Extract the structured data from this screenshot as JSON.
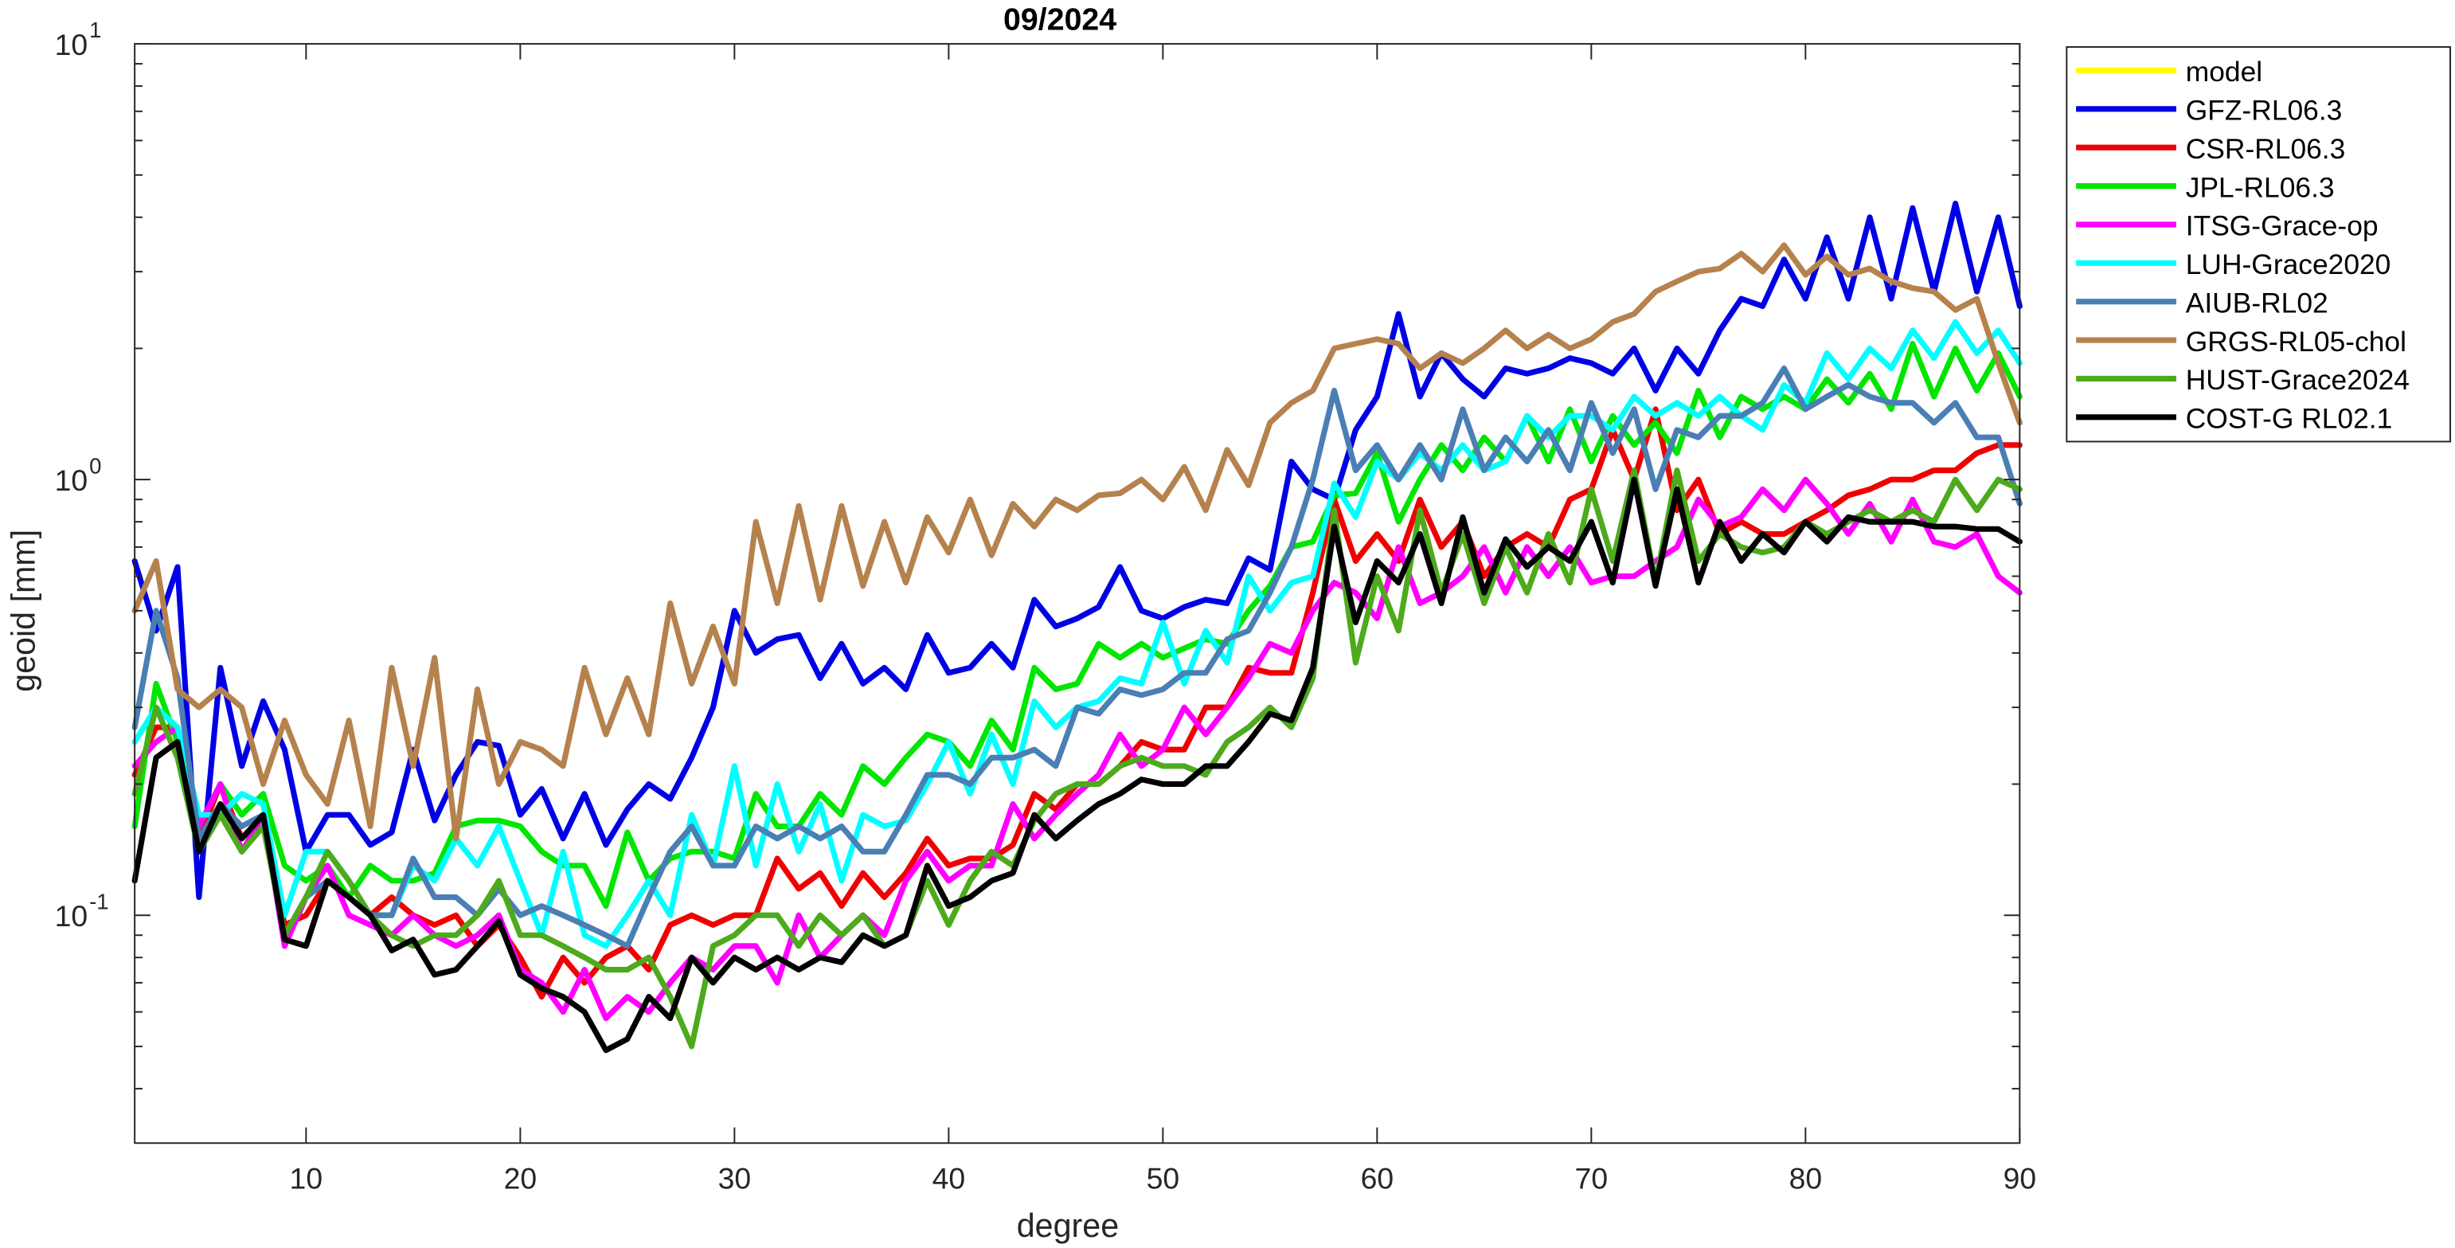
{
  "chart_data": {
    "type": "line",
    "title": "09/2024",
    "xlabel": "degree",
    "ylabel": "geoid [mm]",
    "log_y": true,
    "legend": "outside-right-top",
    "xlim": [
      2,
      90
    ],
    "xticks": [
      10,
      20,
      30,
      40,
      50,
      60,
      70,
      80,
      90
    ],
    "ylim": [
      0.03,
      10
    ],
    "yticks": [
      {
        "value": 0.1,
        "label": "10",
        "exponent": "-1"
      },
      {
        "value": 1,
        "label": "10",
        "exponent": "0"
      },
      {
        "value": 10,
        "label": "10",
        "exponent": "1"
      }
    ],
    "yminorticks": [
      0.04,
      0.05,
      0.06,
      0.07,
      0.08,
      0.09,
      0.2,
      0.3,
      0.4,
      0.5,
      0.6,
      0.7,
      0.8,
      0.9,
      2,
      3,
      4,
      5,
      6,
      7,
      8,
      9
    ],
    "x": [
      2,
      3,
      4,
      5,
      6,
      7,
      8,
      9,
      10,
      11,
      12,
      13,
      14,
      15,
      16,
      17,
      18,
      19,
      20,
      21,
      22,
      23,
      24,
      25,
      26,
      27,
      28,
      29,
      30,
      31,
      32,
      33,
      34,
      35,
      36,
      37,
      38,
      39,
      40,
      41,
      42,
      43,
      44,
      45,
      46,
      47,
      48,
      49,
      50,
      51,
      52,
      53,
      54,
      55,
      56,
      57,
      58,
      59,
      60,
      61,
      62,
      63,
      64,
      65,
      66,
      67,
      68,
      69,
      70,
      71,
      72,
      73,
      74,
      75,
      76,
      77,
      78,
      79,
      80,
      81,
      82,
      83,
      84,
      85,
      86,
      87,
      88,
      89,
      90
    ],
    "series": [
      {
        "name": "model",
        "color": "#ffff00",
        "values": [
          null,
          null,
          null,
          null,
          null,
          null,
          null,
          null,
          null,
          null,
          null,
          null,
          null,
          null,
          null,
          null,
          null,
          null,
          null,
          null,
          null,
          null,
          null,
          null,
          null,
          null,
          null,
          null,
          null,
          null,
          null,
          null,
          null,
          null,
          null,
          null,
          null,
          null,
          null,
          null,
          null,
          null,
          null,
          null,
          null,
          null,
          null,
          null,
          null,
          null,
          null,
          null,
          null,
          null,
          null,
          null,
          null,
          null,
          null,
          null,
          null,
          null,
          null,
          null,
          null,
          null,
          null,
          null,
          null,
          null,
          null,
          null,
          null,
          null,
          null,
          null,
          null,
          null,
          null,
          null,
          null,
          null,
          null,
          null,
          null,
          null,
          null,
          null,
          null
        ]
      },
      {
        "name": "GFZ-RL06.3",
        "color": "#0000e6",
        "values": [
          0.65,
          0.45,
          0.63,
          0.11,
          0.37,
          0.22,
          0.31,
          0.24,
          0.14,
          0.17,
          0.17,
          0.145,
          0.155,
          0.24,
          0.165,
          0.21,
          0.25,
          0.245,
          0.17,
          0.195,
          0.15,
          0.19,
          0.145,
          0.175,
          0.2,
          0.185,
          0.23,
          0.3,
          0.5,
          0.4,
          0.43,
          0.44,
          0.35,
          0.42,
          0.34,
          0.37,
          0.33,
          0.44,
          0.36,
          0.37,
          0.42,
          0.37,
          0.53,
          0.46,
          0.48,
          0.51,
          0.63,
          0.5,
          0.48,
          0.51,
          0.53,
          0.52,
          0.66,
          0.62,
          1.1,
          0.95,
          0.9,
          1.3,
          1.55,
          2.4,
          1.55,
          1.95,
          1.7,
          1.55,
          1.8,
          1.75,
          1.8,
          1.9,
          1.85,
          1.75,
          2.0,
          1.6,
          2.0,
          1.75,
          2.2,
          2.6,
          2.5,
          3.2,
          2.6,
          3.6,
          2.6,
          4.0,
          2.6,
          4.2,
          2.7,
          4.3,
          2.7,
          4.0,
          2.5
        ]
      },
      {
        "name": "CSR-RL06.3",
        "color": "#f00000",
        "values": [
          0.21,
          0.27,
          0.27,
          0.15,
          0.2,
          0.15,
          0.17,
          0.095,
          0.1,
          0.12,
          0.11,
          0.1,
          0.11,
          0.1,
          0.095,
          0.1,
          0.085,
          0.095,
          0.08,
          0.065,
          0.08,
          0.07,
          0.08,
          0.085,
          0.075,
          0.095,
          0.1,
          0.095,
          0.1,
          0.1,
          0.135,
          0.115,
          0.125,
          0.105,
          0.125,
          0.11,
          0.125,
          0.15,
          0.13,
          0.135,
          0.135,
          0.145,
          0.19,
          0.175,
          0.2,
          0.2,
          0.22,
          0.25,
          0.24,
          0.24,
          0.3,
          0.3,
          0.37,
          0.36,
          0.36,
          0.55,
          0.9,
          0.65,
          0.75,
          0.65,
          0.9,
          0.7,
          0.8,
          0.6,
          0.7,
          0.75,
          0.7,
          0.9,
          0.95,
          1.3,
          1.0,
          1.45,
          0.85,
          1.0,
          0.75,
          0.8,
          0.75,
          0.75,
          0.8,
          0.85,
          0.92,
          0.95,
          1.0,
          1.0,
          1.05,
          1.05,
          1.15,
          1.2,
          1.2
        ]
      },
      {
        "name": "JPL-RL06.3",
        "color": "#00e600",
        "values": [
          0.16,
          0.34,
          0.25,
          0.16,
          0.2,
          0.17,
          0.19,
          0.13,
          0.12,
          0.13,
          0.11,
          0.13,
          0.12,
          0.12,
          0.125,
          0.16,
          0.165,
          0.165,
          0.16,
          0.14,
          0.13,
          0.13,
          0.105,
          0.155,
          0.12,
          0.135,
          0.14,
          0.14,
          0.135,
          0.19,
          0.16,
          0.16,
          0.19,
          0.17,
          0.22,
          0.2,
          0.23,
          0.26,
          0.25,
          0.22,
          0.28,
          0.24,
          0.37,
          0.33,
          0.34,
          0.42,
          0.39,
          0.42,
          0.39,
          0.41,
          0.43,
          0.42,
          0.5,
          0.57,
          0.7,
          0.72,
          0.92,
          0.93,
          1.15,
          0.8,
          1.0,
          1.2,
          1.05,
          1.25,
          1.1,
          1.4,
          1.1,
          1.45,
          1.1,
          1.4,
          1.2,
          1.35,
          1.15,
          1.6,
          1.25,
          1.55,
          1.45,
          1.55,
          1.45,
          1.7,
          1.5,
          1.75,
          1.45,
          2.05,
          1.55,
          2.0,
          1.6,
          1.95,
          1.55
        ]
      },
      {
        "name": "ITSG-Grace-op",
        "color": "#ff00ff",
        "values": [
          0.22,
          0.25,
          0.27,
          0.16,
          0.2,
          0.14,
          0.17,
          0.085,
          0.11,
          0.13,
          0.1,
          0.095,
          0.09,
          0.1,
          0.09,
          0.085,
          0.09,
          0.1,
          0.075,
          0.07,
          0.06,
          0.075,
          0.058,
          0.065,
          0.06,
          0.07,
          0.08,
          0.075,
          0.085,
          0.085,
          0.07,
          0.1,
          0.08,
          0.09,
          0.1,
          0.09,
          0.12,
          0.14,
          0.12,
          0.13,
          0.13,
          0.18,
          0.15,
          0.17,
          0.19,
          0.21,
          0.26,
          0.22,
          0.24,
          0.3,
          0.26,
          0.3,
          0.35,
          0.42,
          0.4,
          0.5,
          0.58,
          0.55,
          0.48,
          0.7,
          0.52,
          0.55,
          0.6,
          0.7,
          0.55,
          0.7,
          0.6,
          0.7,
          0.58,
          0.6,
          0.6,
          0.65,
          0.7,
          0.9,
          0.78,
          0.82,
          0.95,
          0.85,
          1.0,
          0.88,
          0.75,
          0.88,
          0.72,
          0.9,
          0.72,
          0.7,
          0.75,
          0.6,
          0.55
        ]
      },
      {
        "name": "LUH-Grace2020",
        "color": "#00ffff",
        "values": [
          0.25,
          0.3,
          0.27,
          0.17,
          0.17,
          0.19,
          0.18,
          0.1,
          0.14,
          0.14,
          0.12,
          0.1,
          0.1,
          0.13,
          0.12,
          0.15,
          0.13,
          0.16,
          0.12,
          0.09,
          0.14,
          0.09,
          0.085,
          0.1,
          0.12,
          0.1,
          0.17,
          0.13,
          0.22,
          0.13,
          0.2,
          0.14,
          0.18,
          0.12,
          0.17,
          0.16,
          0.165,
          0.2,
          0.25,
          0.19,
          0.26,
          0.2,
          0.31,
          0.27,
          0.3,
          0.31,
          0.35,
          0.34,
          0.47,
          0.34,
          0.45,
          0.38,
          0.6,
          0.5,
          0.58,
          0.6,
          0.98,
          0.82,
          1.1,
          1.0,
          1.15,
          1.05,
          1.2,
          1.05,
          1.1,
          1.4,
          1.25,
          1.4,
          1.4,
          1.3,
          1.55,
          1.4,
          1.5,
          1.4,
          1.55,
          1.4,
          1.3,
          1.65,
          1.5,
          1.95,
          1.7,
          2.0,
          1.8,
          2.2,
          1.9,
          2.3,
          1.95,
          2.2,
          1.85
        ]
      },
      {
        "name": "AIUB-RL02",
        "color": "#4a7fb5",
        "values": [
          0.27,
          0.5,
          0.35,
          0.15,
          0.18,
          0.16,
          0.17,
          0.09,
          0.11,
          0.12,
          0.11,
          0.1,
          0.1,
          0.135,
          0.11,
          0.11,
          0.1,
          0.115,
          0.1,
          0.105,
          0.1,
          0.095,
          0.09,
          0.085,
          0.11,
          0.14,
          0.16,
          0.13,
          0.13,
          0.16,
          0.15,
          0.16,
          0.15,
          0.16,
          0.14,
          0.14,
          0.17,
          0.21,
          0.21,
          0.2,
          0.23,
          0.23,
          0.24,
          0.22,
          0.3,
          0.29,
          0.33,
          0.32,
          0.33,
          0.36,
          0.36,
          0.43,
          0.45,
          0.55,
          0.7,
          1.0,
          1.6,
          1.05,
          1.2,
          1.0,
          1.2,
          1.0,
          1.45,
          1.05,
          1.25,
          1.1,
          1.3,
          1.05,
          1.5,
          1.15,
          1.45,
          0.95,
          1.3,
          1.25,
          1.4,
          1.4,
          1.5,
          1.8,
          1.45,
          1.55,
          1.65,
          1.55,
          1.5,
          1.5,
          1.35,
          1.5,
          1.25,
          1.25,
          0.88
        ]
      },
      {
        "name": "GRGS-RL05-chol",
        "color": "#b5824e",
        "values": [
          0.5,
          0.65,
          0.33,
          0.3,
          0.33,
          0.3,
          0.2,
          0.28,
          0.21,
          0.18,
          0.28,
          0.16,
          0.37,
          0.22,
          0.39,
          0.15,
          0.33,
          0.2,
          0.25,
          0.24,
          0.22,
          0.37,
          0.26,
          0.35,
          0.26,
          0.52,
          0.34,
          0.46,
          0.34,
          0.8,
          0.52,
          0.87,
          0.53,
          0.87,
          0.57,
          0.8,
          0.58,
          0.82,
          0.68,
          0.9,
          0.67,
          0.88,
          0.78,
          0.9,
          0.85,
          0.92,
          0.93,
          1.0,
          0.9,
          1.07,
          0.85,
          1.17,
          0.97,
          1.35,
          1.5,
          1.6,
          2.0,
          2.05,
          2.1,
          2.05,
          1.8,
          1.95,
          1.85,
          2.0,
          2.2,
          2.0,
          2.15,
          2.0,
          2.1,
          2.3,
          2.4,
          2.7,
          2.85,
          3.0,
          3.05,
          3.3,
          3.0,
          3.45,
          2.95,
          3.25,
          2.95,
          3.05,
          2.85,
          2.75,
          2.7,
          2.45,
          2.6,
          1.85,
          1.35
        ]
      },
      {
        "name": "HUST-Grace2024",
        "color": "#4daa1d",
        "values": [
          0.19,
          0.3,
          0.23,
          0.14,
          0.17,
          0.14,
          0.16,
          0.09,
          0.11,
          0.14,
          0.12,
          0.1,
          0.09,
          0.085,
          0.09,
          0.09,
          0.1,
          0.12,
          0.09,
          0.09,
          0.085,
          0.08,
          0.075,
          0.075,
          0.08,
          0.065,
          0.05,
          0.085,
          0.09,
          0.1,
          0.1,
          0.085,
          0.1,
          0.09,
          0.1,
          0.085,
          0.09,
          0.12,
          0.095,
          0.12,
          0.14,
          0.13,
          0.165,
          0.19,
          0.2,
          0.2,
          0.22,
          0.23,
          0.22,
          0.22,
          0.21,
          0.25,
          0.27,
          0.3,
          0.27,
          0.35,
          0.85,
          0.38,
          0.6,
          0.45,
          0.85,
          0.55,
          0.75,
          0.52,
          0.7,
          0.55,
          0.75,
          0.58,
          0.95,
          0.65,
          1.05,
          0.58,
          1.05,
          0.65,
          0.75,
          0.7,
          0.68,
          0.7,
          0.8,
          0.75,
          0.8,
          0.85,
          0.8,
          0.85,
          0.8,
          1.0,
          0.85,
          1.0,
          0.95
        ]
      },
      {
        "name": "COST-G RL02.1",
        "color": "#000000",
        "values": [
          0.12,
          0.23,
          0.25,
          0.14,
          0.18,
          0.15,
          0.17,
          0.088,
          0.085,
          0.12,
          0.11,
          0.1,
          0.083,
          0.088,
          0.073,
          0.075,
          0.085,
          0.097,
          0.073,
          0.068,
          0.065,
          0.06,
          0.049,
          0.052,
          0.065,
          0.058,
          0.08,
          0.07,
          0.08,
          0.075,
          0.08,
          0.075,
          0.08,
          0.078,
          0.09,
          0.085,
          0.09,
          0.13,
          0.105,
          0.11,
          0.12,
          0.125,
          0.17,
          0.15,
          0.165,
          0.18,
          0.19,
          0.205,
          0.2,
          0.2,
          0.22,
          0.22,
          0.25,
          0.29,
          0.28,
          0.37,
          0.78,
          0.47,
          0.65,
          0.58,
          0.75,
          0.52,
          0.82,
          0.55,
          0.73,
          0.63,
          0.7,
          0.65,
          0.8,
          0.58,
          1.0,
          0.57,
          0.95,
          0.58,
          0.8,
          0.65,
          0.75,
          0.68,
          0.8,
          0.72,
          0.82,
          0.8,
          0.8,
          0.8,
          0.78,
          0.78,
          0.77,
          0.77,
          0.72
        ]
      }
    ]
  }
}
